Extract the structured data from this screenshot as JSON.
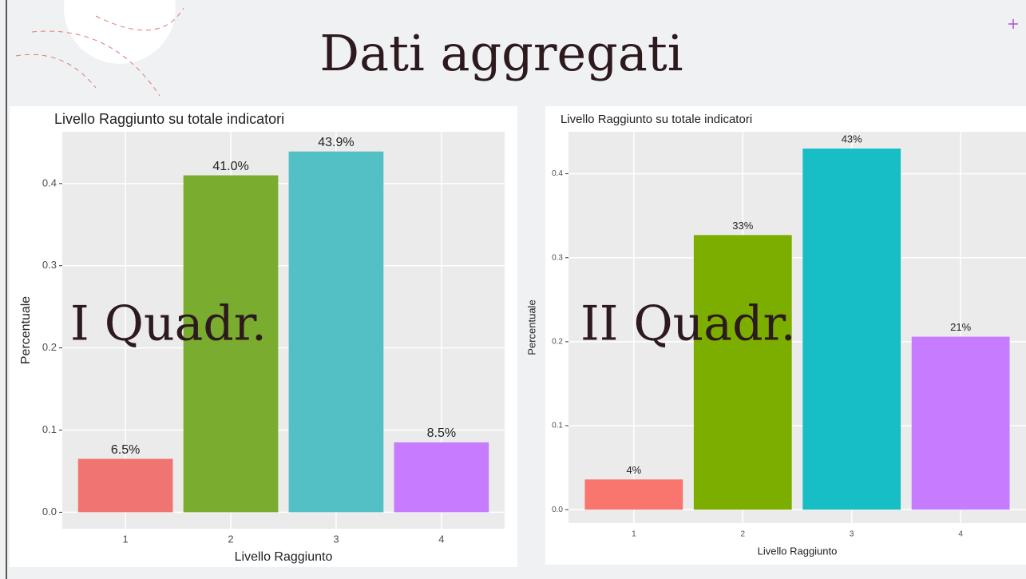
{
  "title": "Dati aggregati",
  "chart_data": [
    {
      "type": "bar",
      "title": "Livello Raggiunto su totale indicatori",
      "annotation": "I Quadr.",
      "x_label": "Livello Raggiunto",
      "y_label": "Percentuale",
      "categories": [
        "1",
        "2",
        "3",
        "4"
      ],
      "values": [
        0.065,
        0.41,
        0.439,
        0.085
      ],
      "value_labels": [
        "6.5%",
        "41.0%",
        "43.9%",
        "8.5%"
      ],
      "colors": [
        "#f07570",
        "#7aac2f",
        "#52c0c4",
        "#c77cff"
      ],
      "ylim": [
        -0.02,
        0.463
      ],
      "yticks": [
        {
          "value": 0,
          "label": "0.0"
        },
        0.1,
        0.2,
        0.3,
        0.4
      ],
      "grid": true
    },
    {
      "type": "bar",
      "title": "Livello Raggiunto su totale indicatori",
      "annotation": "II Quadr.",
      "x_label": "Livello Raggiunto",
      "y_label": "Percentuale",
      "categories": [
        "1",
        "2",
        "3",
        "4"
      ],
      "values": [
        0.036,
        0.327,
        0.43,
        0.206
      ],
      "value_labels": [
        "4%",
        "33%",
        "43%",
        "21%"
      ],
      "colors": [
        "#f8766d",
        "#7cae00",
        "#17bec5",
        "#c77cff"
      ],
      "ylim": [
        -0.016,
        0.45
      ],
      "yticks": [
        {
          "value": 0,
          "label": "0.0"
        },
        0.1,
        0.2,
        0.3,
        0.4
      ],
      "grid": true
    }
  ]
}
